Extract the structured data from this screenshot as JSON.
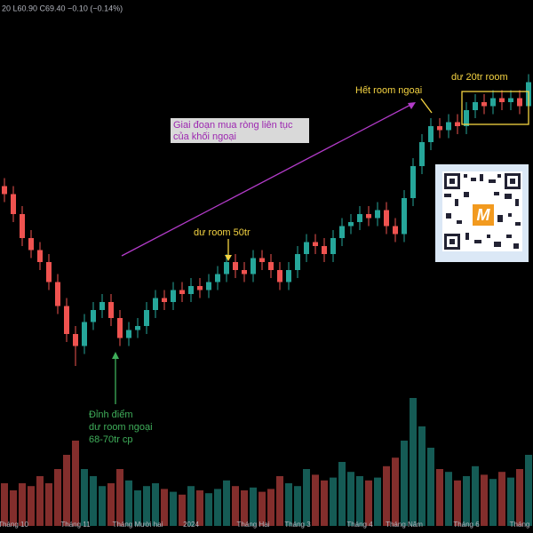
{
  "chart_data": {
    "type": "candlestick",
    "legend_text": "20  L60.90  C69.40  −0.10 (−0.14%)",
    "categories": [
      null,
      "Tháng 10",
      null,
      null,
      null,
      null,
      null,
      null,
      "Tháng 11",
      null,
      null,
      null,
      null,
      null,
      null,
      "Tháng Mười hai",
      null,
      null,
      null,
      null,
      null,
      "2024",
      null,
      null,
      null,
      null,
      null,
      null,
      "Tháng Hai",
      null,
      null,
      null,
      null,
      "Tháng 3",
      null,
      null,
      null,
      null,
      null,
      null,
      "Tháng 4",
      null,
      null,
      null,
      null,
      "Tháng Năm",
      null,
      null,
      null,
      null,
      null,
      null,
      "Tháng 6",
      null,
      null,
      null,
      null,
      null,
      "Tháng",
      null
    ],
    "open": [
      59.5,
      58.5,
      56,
      53,
      51.5,
      50,
      47.5,
      44.5,
      41,
      39.5,
      42.5,
      44,
      45,
      43,
      40.5,
      41.5,
      42,
      44,
      45.5,
      45,
      46.5,
      46,
      47,
      46.5,
      47.5,
      48.5,
      50,
      49,
      48.5,
      50.5,
      50,
      49,
      47.5,
      49,
      51,
      52.5,
      52,
      51,
      53,
      54.5,
      55,
      56,
      55.5,
      56.5,
      54.5,
      53.5,
      58,
      62,
      65,
      67,
      66.5,
      67.5,
      67,
      69,
      70,
      69.5,
      70.5,
      70,
      70.5,
      69.5
    ],
    "high": [
      60.5,
      59.5,
      57,
      54,
      52.5,
      51,
      48.5,
      45.5,
      42,
      43.5,
      45,
      46,
      46,
      44,
      42.5,
      43,
      45,
      46.5,
      46.5,
      47.5,
      47.5,
      48,
      48,
      48.5,
      49.5,
      51,
      51,
      50,
      51.5,
      51.5,
      51,
      50,
      50,
      52,
      53.5,
      53.5,
      53,
      54,
      55.5,
      56,
      57,
      57,
      57.5,
      57.5,
      55.5,
      59,
      63,
      66,
      68,
      68,
      68.5,
      68.5,
      70,
      71,
      71,
      71.5,
      71.5,
      71.5,
      71.5,
      73.5
    ],
    "low": [
      57.5,
      55,
      52,
      50.5,
      49,
      46.5,
      43.5,
      40,
      37,
      38.5,
      41.5,
      43,
      42,
      39.5,
      39.5,
      40.5,
      41,
      43,
      44,
      44,
      45,
      45,
      45.5,
      45.5,
      46.5,
      47.5,
      48,
      47.5,
      47.5,
      49,
      48,
      46.5,
      46.5,
      48,
      50,
      51,
      50,
      50,
      52,
      53.5,
      54,
      54.5,
      54.5,
      53.5,
      52.5,
      52.5,
      57,
      61,
      64,
      65.5,
      65.5,
      66,
      66,
      68,
      68.5,
      68.5,
      69,
      69,
      68.5,
      68.5
    ],
    "close": [
      58.5,
      56,
      53,
      51.5,
      50,
      47.5,
      44.5,
      41,
      39.5,
      42.5,
      44,
      45,
      43,
      40.5,
      41.5,
      42,
      44,
      45.5,
      45,
      46.5,
      46,
      47,
      46.5,
      47.5,
      48.5,
      50,
      49,
      48.5,
      50.5,
      50,
      49,
      47.5,
      49,
      51,
      52.5,
      52,
      51,
      53,
      54.5,
      55,
      56,
      55.5,
      56.5,
      54.5,
      53.5,
      58,
      62,
      65,
      67,
      66.5,
      67.5,
      67,
      69,
      70,
      69.5,
      70.5,
      70,
      70.5,
      69.5,
      72.5
    ],
    "volume": [
      3,
      2.5,
      3,
      2.8,
      3.5,
      3,
      4,
      5,
      6,
      4,
      3.5,
      2.8,
      3,
      4,
      3.2,
      2.5,
      2.8,
      3,
      2.6,
      2.4,
      2.2,
      2.8,
      2.5,
      2.3,
      2.6,
      3.2,
      2.8,
      2.5,
      2.7,
      2.4,
      2.6,
      3.5,
      3,
      2.8,
      4,
      3.6,
      3.2,
      3.4,
      4.5,
      3.8,
      3.5,
      3.2,
      3.4,
      4.2,
      4.8,
      6,
      9,
      7,
      5.5,
      4,
      3.8,
      3.2,
      3.5,
      4.2,
      3.6,
      3.3,
      3.8,
      3.4,
      4,
      5
    ],
    "ylim": [
      35,
      75
    ],
    "y2lim": [
      0,
      10
    ],
    "up_color": "#26a69a",
    "down_color": "#ef5350",
    "annotations": {
      "phase": [
        "Giai đoạn mua ròng liên tục",
        "của khối ngoại"
      ],
      "room50": "dư room 50tr",
      "out_of_room": "Hết room ngoại",
      "room20": "dư 20tr room",
      "peak": [
        "Đỉnh điểm",
        "dư room ngoại",
        "68-70tr cp"
      ]
    },
    "logo": "M"
  }
}
